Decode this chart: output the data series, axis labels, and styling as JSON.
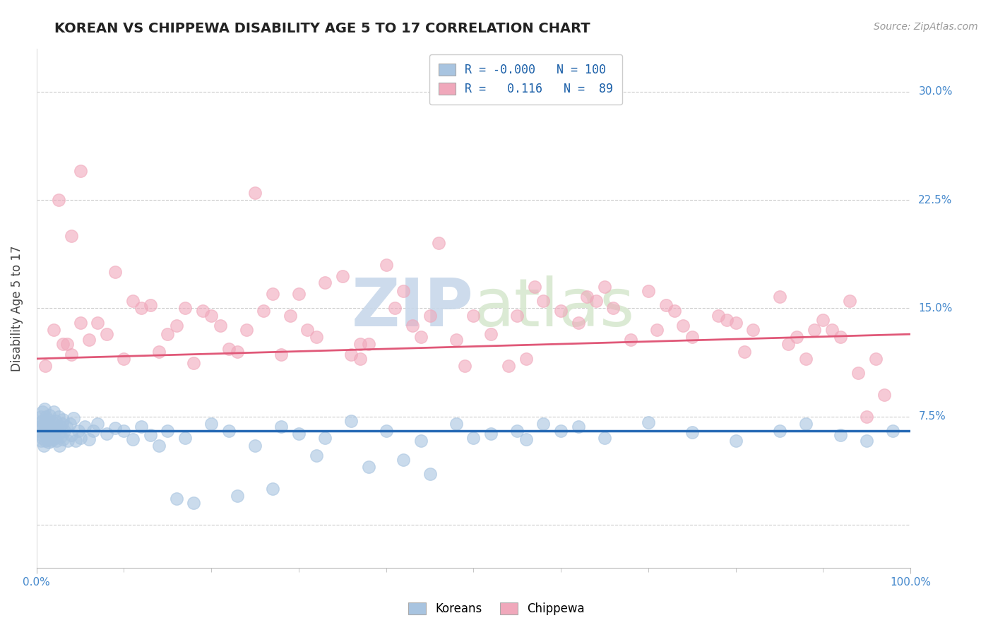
{
  "title": "KOREAN VS CHIPPEWA DISABILITY AGE 5 TO 17 CORRELATION CHART",
  "source": "Source: ZipAtlas.com",
  "ylabel": "Disability Age 5 to 17",
  "xlim": [
    0,
    100
  ],
  "ylim": [
    -3,
    33
  ],
  "ytick_values": [
    0,
    7.5,
    15.0,
    22.5,
    30.0
  ],
  "ytick_labels": [
    "",
    "7.5%",
    "15.0%",
    "22.5%",
    "30.0%"
  ],
  "legend_r1": "-0.000",
  "legend_n1": "100",
  "legend_r2": "0.116",
  "legend_n2": "89",
  "korean_color": "#a8c4e0",
  "chippewa_color": "#f0a8bb",
  "line_korean_color": "#2468b4",
  "line_chippewa_color": "#e05878",
  "background_color": "#ffffff",
  "watermark_color": "#c8d8ea",
  "legend_color": "#1a5fa8",
  "source_color": "#999999",
  "title_color": "#222222",
  "tick_label_color": "#4488cc",
  "korean_line_y_start": 6.5,
  "korean_line_y_end": 6.5,
  "chippewa_line_y_start": 11.5,
  "chippewa_line_y_end": 13.2,
  "korean_x": [
    0.2,
    0.3,
    0.4,
    0.5,
    0.5,
    0.6,
    0.6,
    0.7,
    0.7,
    0.8,
    0.8,
    0.9,
    0.9,
    1.0,
    1.0,
    1.1,
    1.1,
    1.2,
    1.2,
    1.3,
    1.3,
    1.4,
    1.4,
    1.5,
    1.5,
    1.6,
    1.6,
    1.7,
    1.8,
    1.9,
    2.0,
    2.0,
    2.1,
    2.2,
    2.3,
    2.4,
    2.5,
    2.5,
    2.6,
    2.7,
    2.8,
    2.9,
    3.0,
    3.0,
    3.2,
    3.4,
    3.6,
    3.8,
    4.0,
    4.2,
    4.5,
    4.8,
    5.0,
    5.5,
    6.0,
    6.5,
    7.0,
    8.0,
    9.0,
    10.0,
    11.0,
    12.0,
    13.0,
    14.0,
    15.0,
    17.0,
    20.0,
    22.0,
    25.0,
    28.0,
    30.0,
    33.0,
    36.0,
    40.0,
    44.0,
    48.0,
    52.0,
    56.0,
    60.0,
    65.0,
    70.0,
    75.0,
    80.0,
    85.0,
    88.0,
    92.0,
    95.0,
    98.0,
    50.0,
    55.0,
    62.0,
    45.0,
    38.0,
    42.0,
    32.0,
    27.0,
    23.0,
    18.0,
    16.0,
    58.0
  ],
  "korean_y": [
    6.5,
    7.0,
    6.8,
    7.5,
    5.8,
    6.2,
    7.2,
    6.0,
    7.8,
    5.5,
    7.0,
    6.5,
    8.0,
    5.8,
    7.2,
    6.3,
    7.5,
    5.9,
    6.8,
    6.1,
    7.3,
    5.7,
    6.9,
    6.2,
    7.6,
    5.8,
    7.0,
    6.4,
    7.1,
    5.9,
    6.5,
    7.8,
    6.0,
    7.2,
    5.8,
    6.7,
    6.3,
    7.5,
    5.5,
    6.8,
    6.1,
    7.0,
    5.9,
    7.3,
    6.5,
    6.8,
    5.8,
    7.0,
    6.2,
    7.4,
    5.8,
    6.5,
    6.0,
    6.8,
    5.9,
    6.5,
    7.0,
    6.3,
    6.7,
    6.5,
    5.9,
    6.8,
    6.2,
    5.5,
    6.5,
    6.0,
    7.0,
    6.5,
    5.5,
    6.8,
    6.3,
    6.0,
    7.2,
    6.5,
    5.8,
    7.0,
    6.3,
    5.9,
    6.5,
    6.0,
    7.1,
    6.4,
    5.8,
    6.5,
    7.0,
    6.2,
    5.8,
    6.5,
    6.0,
    6.5,
    6.8,
    3.5,
    4.0,
    4.5,
    4.8,
    2.5,
    2.0,
    1.5,
    1.8,
    7.0
  ],
  "chippewa_x": [
    1.0,
    2.0,
    3.0,
    4.0,
    5.0,
    6.0,
    8.0,
    10.0,
    12.0,
    14.0,
    16.0,
    18.0,
    20.0,
    22.0,
    24.0,
    26.0,
    28.0,
    30.0,
    32.0,
    35.0,
    38.0,
    40.0,
    43.0,
    46.0,
    50.0,
    54.0,
    58.0,
    62.0,
    65.0,
    68.0,
    72.0,
    75.0,
    78.0,
    82.0,
    85.0,
    88.0,
    90.0,
    92.0,
    95.0,
    97.0,
    3.5,
    7.0,
    11.0,
    15.0,
    19.0,
    23.0,
    27.0,
    31.0,
    36.0,
    41.0,
    45.0,
    48.0,
    52.0,
    56.0,
    60.0,
    64.0,
    70.0,
    74.0,
    80.0,
    86.0,
    91.0,
    94.0,
    2.5,
    9.0,
    17.0,
    25.0,
    33.0,
    42.0,
    55.0,
    63.0,
    71.0,
    79.0,
    87.0,
    93.0,
    5.0,
    13.0,
    21.0,
    29.0,
    37.0,
    44.0,
    49.0,
    57.0,
    66.0,
    73.0,
    81.0,
    89.0,
    96.0,
    4.0,
    37.0
  ],
  "chippewa_y": [
    11.0,
    13.5,
    12.5,
    11.8,
    14.0,
    12.8,
    13.2,
    11.5,
    15.0,
    12.0,
    13.8,
    11.2,
    14.5,
    12.2,
    13.5,
    14.8,
    11.8,
    16.0,
    13.0,
    17.2,
    12.5,
    18.0,
    13.8,
    19.5,
    14.5,
    11.0,
    15.5,
    14.0,
    16.5,
    12.8,
    15.2,
    13.0,
    14.5,
    13.5,
    15.8,
    11.5,
    14.2,
    13.0,
    7.5,
    9.0,
    12.5,
    14.0,
    15.5,
    13.2,
    14.8,
    12.0,
    16.0,
    13.5,
    11.8,
    15.0,
    14.5,
    12.8,
    13.2,
    11.5,
    14.8,
    15.5,
    16.2,
    13.8,
    14.0,
    12.5,
    13.5,
    10.5,
    22.5,
    17.5,
    15.0,
    23.0,
    16.8,
    16.2,
    14.5,
    15.8,
    13.5,
    14.2,
    13.0,
    15.5,
    24.5,
    15.2,
    13.8,
    14.5,
    12.5,
    13.0,
    11.0,
    16.5,
    15.0,
    14.8,
    12.0,
    13.5,
    11.5,
    20.0,
    11.5
  ]
}
